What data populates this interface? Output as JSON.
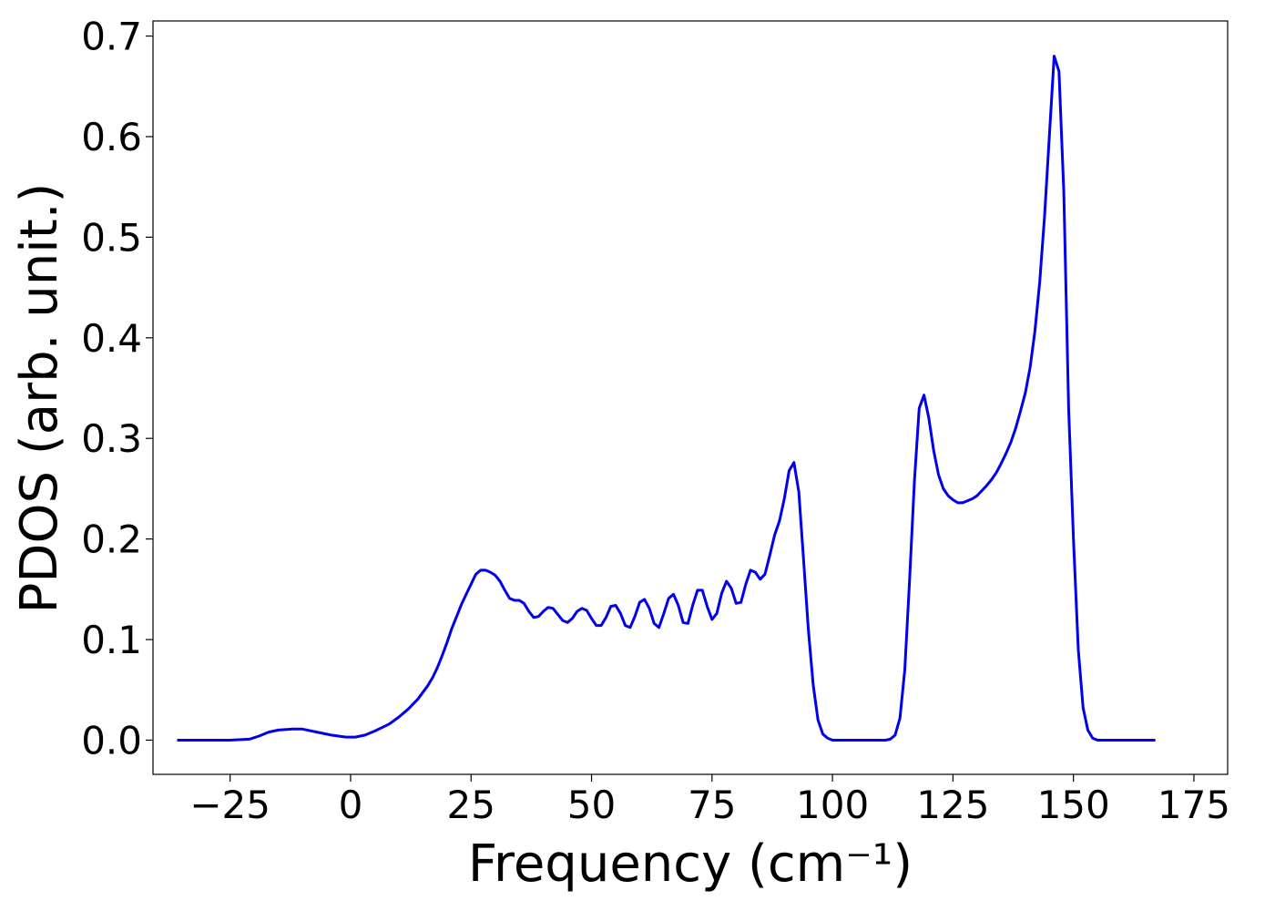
{
  "chart_data": {
    "type": "line",
    "title": "",
    "xlabel": "Frequency (cm⁻¹)",
    "ylabel": "PDOS (arb. unit.)",
    "xlim": [
      -41,
      182
    ],
    "ylim": [
      -0.034,
      0.715
    ],
    "xticks": [
      -25,
      0,
      25,
      50,
      75,
      100,
      125,
      150,
      175
    ],
    "xtick_labels": [
      "−25",
      "0",
      "25",
      "50",
      "75",
      "100",
      "125",
      "150",
      "175"
    ],
    "yticks": [
      0.0,
      0.1,
      0.2,
      0.3,
      0.4,
      0.5,
      0.6,
      0.7
    ],
    "ytick_labels": [
      "0.0",
      "0.1",
      "0.2",
      "0.3",
      "0.4",
      "0.5",
      "0.6",
      "0.7"
    ],
    "grid": false,
    "legend": "none",
    "series": [
      {
        "color": "#0000ee",
        "x": [
          -36,
          -30,
          -25,
          -21,
          -19,
          -17,
          -15,
          -12,
          -10,
          -7,
          -4,
          -1,
          1,
          3,
          5,
          8,
          10,
          12,
          14,
          16,
          17,
          18,
          19,
          20,
          21,
          22,
          23,
          24,
          25,
          26,
          27,
          28,
          29,
          30,
          31,
          32,
          33,
          34,
          35,
          36,
          37,
          38,
          39,
          40,
          41,
          42,
          43,
          44,
          45,
          46,
          47,
          48,
          49,
          50,
          51,
          52,
          53,
          54,
          55,
          56,
          57,
          58,
          59,
          60,
          61,
          62,
          63,
          64,
          65,
          66,
          67,
          68,
          69,
          70,
          71,
          72,
          73,
          74,
          75,
          76,
          77,
          78,
          79,
          80,
          81,
          82,
          83,
          84,
          85,
          86,
          87,
          88,
          89,
          90,
          91,
          92,
          93,
          94,
          95,
          96,
          97,
          98,
          99,
          100,
          102,
          105,
          108,
          110,
          111,
          112,
          113,
          114,
          115,
          116,
          117,
          118,
          119,
          120,
          121,
          122,
          123,
          124,
          125,
          126,
          127,
          128,
          129,
          130,
          131,
          132,
          133,
          134,
          135,
          136,
          137,
          138,
          139,
          140,
          141,
          142,
          143,
          144,
          145,
          146,
          147,
          148,
          149,
          150,
          151,
          152,
          153,
          154,
          155,
          156,
          158,
          162,
          167
        ],
        "y": [
          0.0,
          0.0,
          0.0,
          0.001,
          0.004,
          0.008,
          0.01,
          0.011,
          0.011,
          0.008,
          0.005,
          0.003,
          0.003,
          0.005,
          0.009,
          0.016,
          0.023,
          0.031,
          0.041,
          0.054,
          0.062,
          0.072,
          0.084,
          0.097,
          0.111,
          0.123,
          0.135,
          0.145,
          0.155,
          0.165,
          0.169,
          0.169,
          0.167,
          0.164,
          0.158,
          0.149,
          0.141,
          0.139,
          0.139,
          0.136,
          0.128,
          0.122,
          0.123,
          0.128,
          0.132,
          0.131,
          0.125,
          0.119,
          0.117,
          0.121,
          0.128,
          0.131,
          0.129,
          0.121,
          0.114,
          0.114,
          0.122,
          0.133,
          0.134,
          0.126,
          0.114,
          0.112,
          0.123,
          0.137,
          0.14,
          0.131,
          0.116,
          0.112,
          0.126,
          0.141,
          0.145,
          0.134,
          0.117,
          0.116,
          0.134,
          0.149,
          0.149,
          0.133,
          0.12,
          0.126,
          0.146,
          0.158,
          0.151,
          0.136,
          0.137,
          0.155,
          0.169,
          0.167,
          0.16,
          0.165,
          0.184,
          0.204,
          0.218,
          0.24,
          0.268,
          0.276,
          0.247,
          0.18,
          0.11,
          0.055,
          0.02,
          0.006,
          0.002,
          0.0,
          0.0,
          0.0,
          0.0,
          0.0,
          0.0,
          0.001,
          0.005,
          0.022,
          0.07,
          0.16,
          0.258,
          0.33,
          0.343,
          0.32,
          0.288,
          0.264,
          0.25,
          0.243,
          0.239,
          0.236,
          0.236,
          0.238,
          0.24,
          0.243,
          0.248,
          0.253,
          0.259,
          0.266,
          0.275,
          0.285,
          0.296,
          0.31,
          0.327,
          0.345,
          0.37,
          0.406,
          0.455,
          0.52,
          0.6,
          0.68,
          0.665,
          0.545,
          0.33,
          0.2,
          0.09,
          0.032,
          0.01,
          0.002,
          0.0,
          0.0,
          0.0,
          0.0,
          0.0
        ]
      }
    ]
  }
}
